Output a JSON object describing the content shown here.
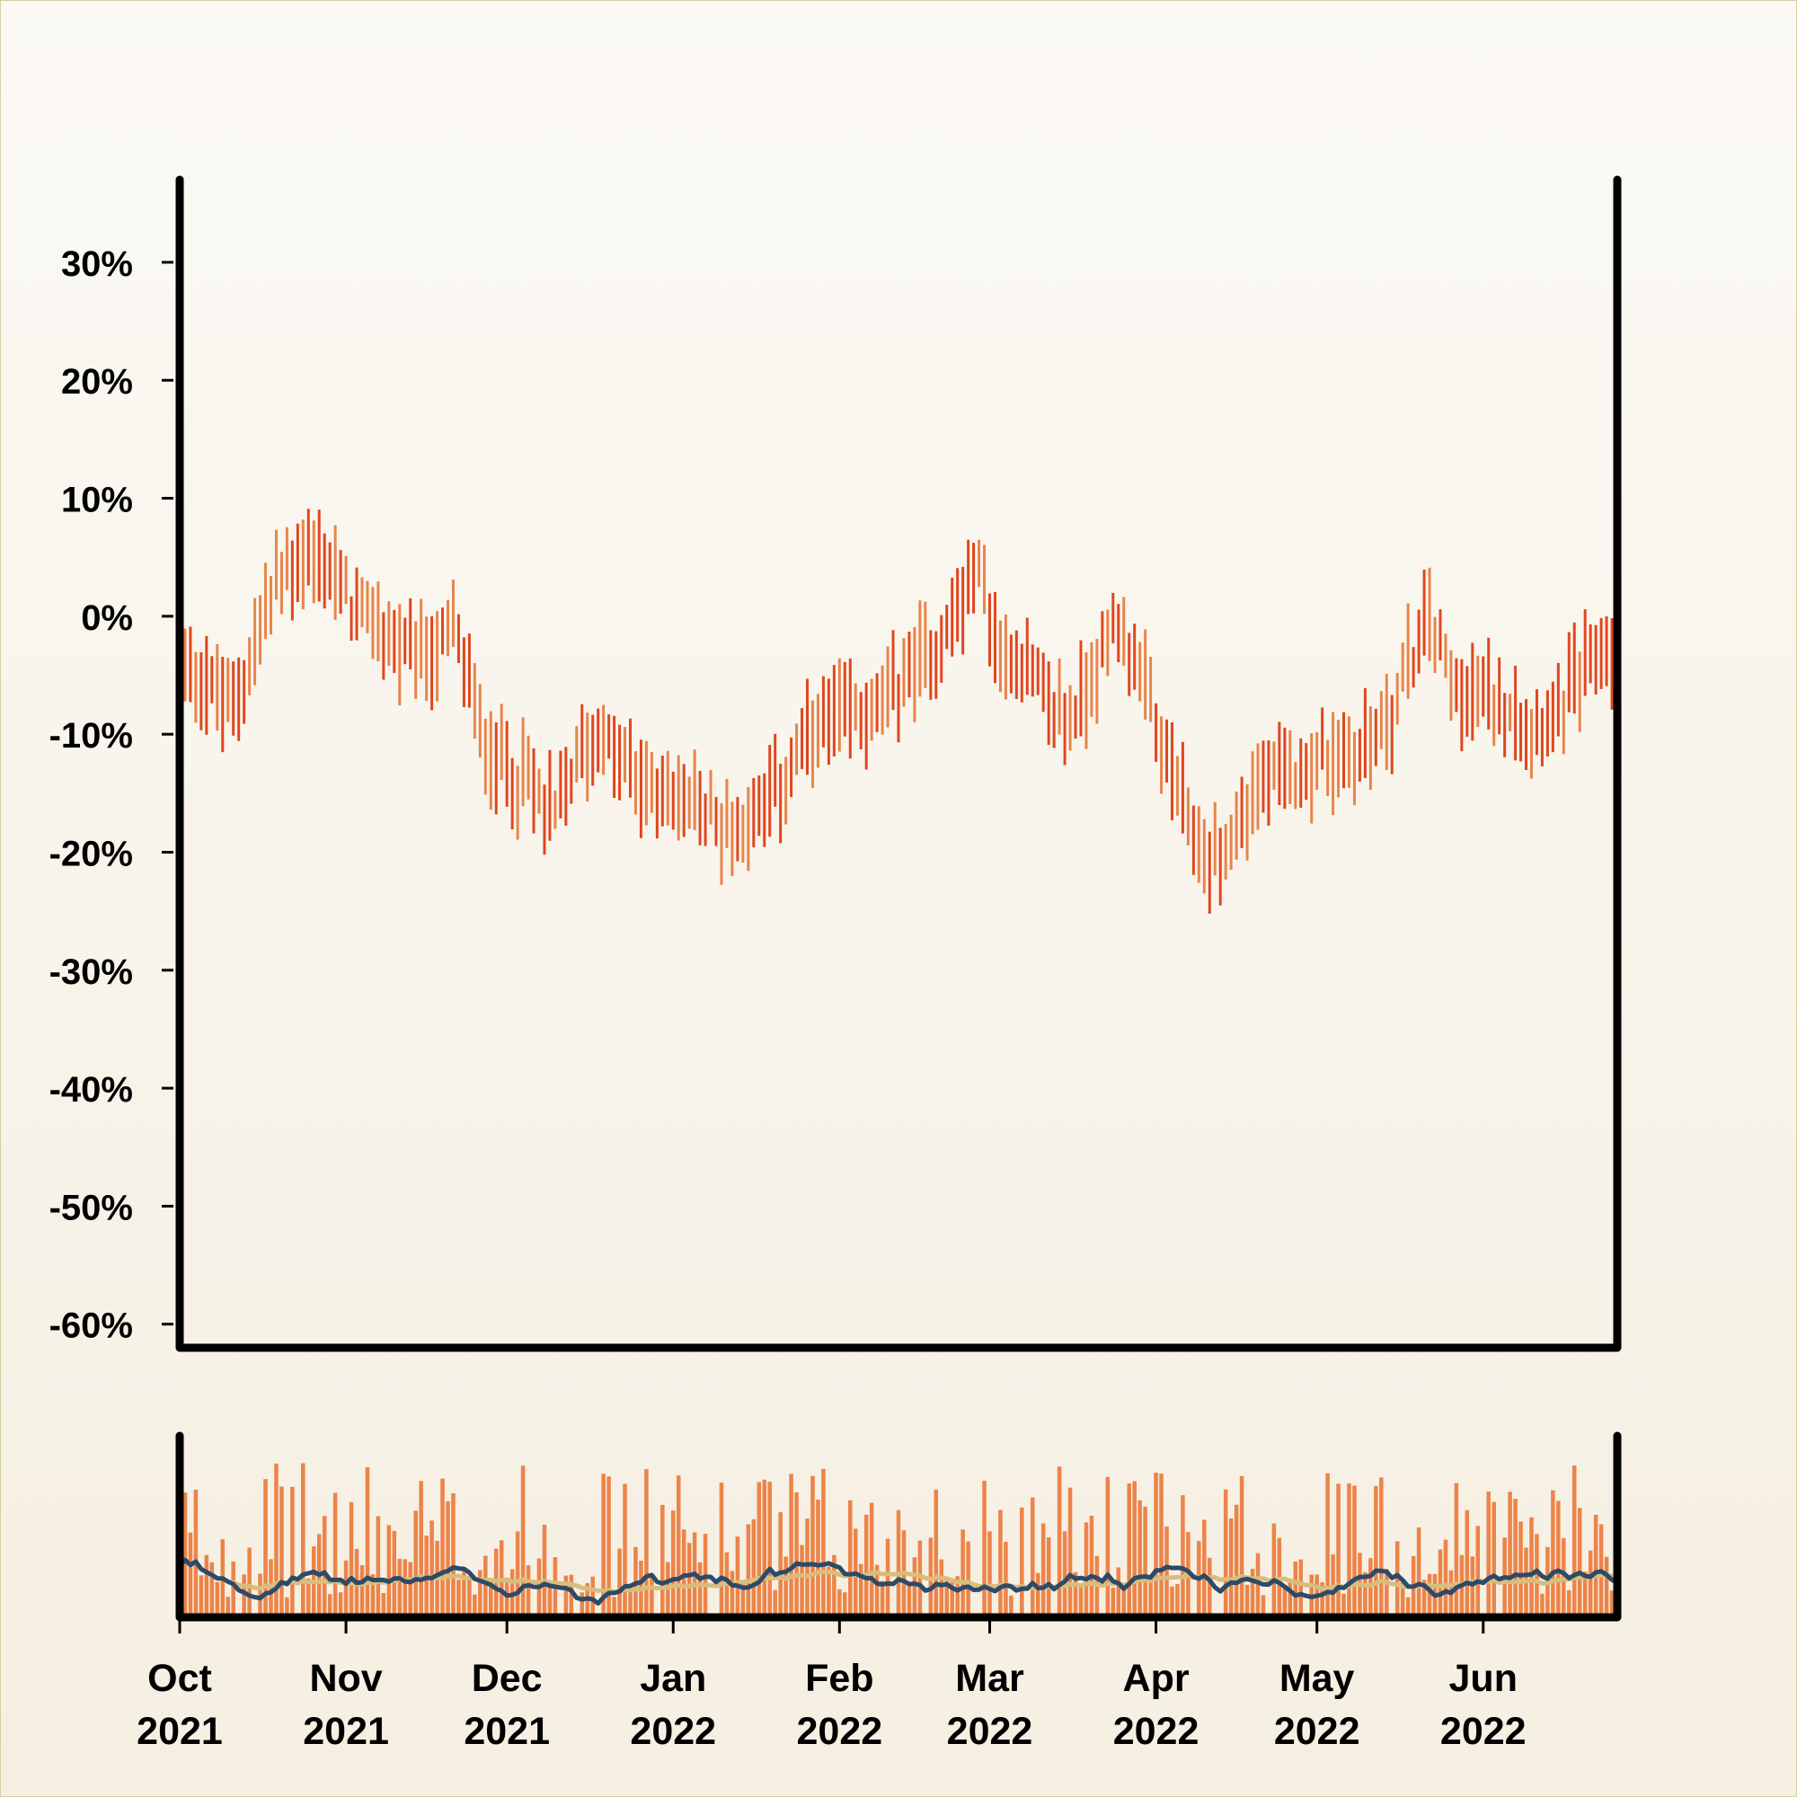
{
  "chart_data": {
    "type": "bar",
    "panels": [
      {
        "name": "price",
        "type": "ohlc",
        "title": "",
        "ylabel": "",
        "ylim": [
          -62,
          37
        ],
        "yticks": [
          30,
          20,
          10,
          0,
          -10,
          -20,
          -30,
          -40,
          -50,
          -60
        ],
        "ytick_labels": [
          "30%",
          "20%",
          "10%",
          "0%",
          "-10%",
          "-20%",
          "-30%",
          "-40%",
          "-50%",
          "-60%"
        ],
        "up_color": "#e8844a",
        "down_color": "#e0461e",
        "trend_anchors": [
          [
            "2021-10-01",
            -3
          ],
          [
            "2021-10-05",
            -5
          ],
          [
            "2021-10-10",
            -8
          ],
          [
            "2021-10-14",
            -4
          ],
          [
            "2021-10-19",
            3
          ],
          [
            "2021-10-24",
            5
          ],
          [
            "2021-10-29",
            4
          ],
          [
            "2021-11-03",
            0
          ],
          [
            "2021-11-08",
            -1
          ],
          [
            "2021-11-13",
            -4
          ],
          [
            "2021-11-18",
            -3
          ],
          [
            "2021-11-21",
            -1
          ],
          [
            "2021-11-27",
            -11
          ],
          [
            "2021-12-05",
            -14
          ],
          [
            "2021-12-10",
            -17
          ],
          [
            "2021-12-14",
            -12
          ],
          [
            "2021-12-18",
            -10
          ],
          [
            "2021-12-25",
            -14
          ],
          [
            "2022-01-05",
            -16
          ],
          [
            "2022-01-12",
            -18
          ],
          [
            "2022-01-20",
            -15
          ],
          [
            "2022-01-27",
            -10
          ],
          [
            "2022-02-04",
            -8
          ],
          [
            "2022-02-09",
            -8
          ],
          [
            "2022-02-13",
            -5
          ],
          [
            "2022-02-20",
            -2
          ],
          [
            "2022-02-27",
            4
          ],
          [
            "2022-03-03",
            -4
          ],
          [
            "2022-03-07",
            -3
          ],
          [
            "2022-03-11",
            -7
          ],
          [
            "2022-03-16",
            -9
          ],
          [
            "2022-03-19",
            -6
          ],
          [
            "2022-03-25",
            0
          ],
          [
            "2022-03-31",
            -8
          ],
          [
            "2022-04-05",
            -15
          ],
          [
            "2022-04-10",
            -21
          ],
          [
            "2022-04-15",
            -19
          ],
          [
            "2022-04-19",
            -15
          ],
          [
            "2022-04-24",
            -14
          ],
          [
            "2022-05-01",
            -12
          ],
          [
            "2022-05-08",
            -12
          ],
          [
            "2022-05-15",
            -8
          ],
          [
            "2022-05-20",
            -2
          ],
          [
            "2022-05-22",
            0
          ],
          [
            "2022-05-26",
            -5
          ],
          [
            "2022-05-31",
            -7
          ],
          [
            "2022-06-05",
            -7
          ],
          [
            "2022-06-11",
            -9
          ],
          [
            "2022-06-16",
            -7
          ],
          [
            "2022-06-22",
            -3
          ],
          [
            "2022-06-26",
            -3
          ]
        ]
      },
      {
        "name": "volume",
        "type": "bar",
        "bar_color": "#ec844a",
        "ylim": [
          0,
          1
        ],
        "ma_short_color": "#2b4b68",
        "ma_long_color": "#d9bd7c",
        "ma_short_window": 10,
        "ma_long_window": 30
      }
    ],
    "x_range": [
      "2021-10-01",
      "2022-06-26"
    ],
    "x_ticks": [
      {
        "date": "2021-10-01",
        "month": "Oct",
        "year": "2021"
      },
      {
        "date": "2021-11-01",
        "month": "Nov",
        "year": "2021"
      },
      {
        "date": "2021-12-01",
        "month": "Dec",
        "year": "2021"
      },
      {
        "date": "2022-01-01",
        "month": "Jan",
        "year": "2022"
      },
      {
        "date": "2022-02-01",
        "month": "Feb",
        "year": "2022"
      },
      {
        "date": "2022-03-01",
        "month": "Mar",
        "year": "2022"
      },
      {
        "date": "2022-04-01",
        "month": "Apr",
        "year": "2022"
      },
      {
        "date": "2022-05-01",
        "month": "May",
        "year": "2022"
      },
      {
        "date": "2022-06-01",
        "month": "Jun",
        "year": "2022"
      }
    ],
    "grid": false,
    "legend": false
  }
}
